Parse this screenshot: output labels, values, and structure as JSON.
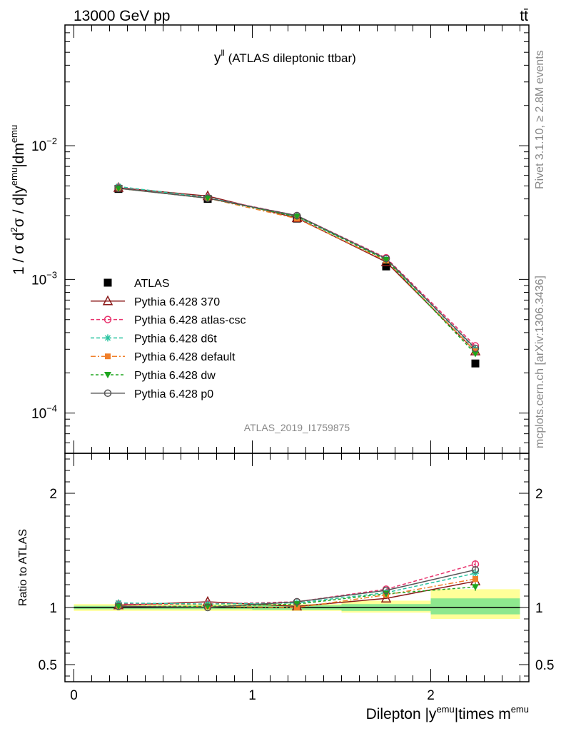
{
  "header": {
    "left": "13000 GeV pp",
    "right": "tt̄"
  },
  "side": {
    "rivet": "Rivet 3.1.10, ≥ 2.8M events",
    "mcplots": "mcplots.cern.ch [arXiv:1306.3436]"
  },
  "plot": {
    "title_main": "y",
    "title_sup": "ll",
    "title_rest": " (ATLAS dileptonic ttbar)",
    "analysis_id": "ATLAS_2019_I1759875"
  },
  "colors": {
    "ATLAS": "#000000",
    "370": "#8b1a1a",
    "atlas-csc": "#e8336d",
    "d6t": "#2ac4a0",
    "default": "#f07f2a",
    "dw": "#1ea51e",
    "p0": "#555555",
    "band_inner": "#8ee88e",
    "band_outer": "#ffff99"
  },
  "chart_data": [
    {
      "type": "line",
      "panel": "main",
      "yscale": "log",
      "ylim": [
        5e-05,
        0.08
      ],
      "xlim": [
        -0.05,
        2.55
      ],
      "ylabel": {
        "lead": "1 / σ  d",
        "sup1": "2",
        "mid": "σ / d|y",
        "sup2": "emu",
        "end": "|dm",
        "sup3": "emu"
      },
      "yticks": [
        {
          "base": "10",
          "exp": "−2",
          "v": 0.01
        },
        {
          "base": "10",
          "exp": "−3",
          "v": 0.001
        },
        {
          "base": "10",
          "exp": "−4",
          "v": 0.0001
        }
      ],
      "x": [
        0.25,
        0.75,
        1.25,
        1.75,
        2.25
      ],
      "x_edges": [
        0,
        0.5,
        1,
        1.5,
        2,
        2.5
      ],
      "series": [
        {
          "name": "ATLAS",
          "key": "ATLAS",
          "marker": "square",
          "dash": "",
          "values": [
            0.00475,
            0.004,
            0.00285,
            0.00125,
            0.000235
          ]
        },
        {
          "name": "Pythia 6.428 370",
          "key": "370",
          "marker": "triangle-open",
          "dash": "",
          "values": [
            0.00485,
            0.0042,
            0.00288,
            0.00135,
            0.00029
          ]
        },
        {
          "name": "Pythia 6.428 atlas-csc",
          "key": "atlas-csc",
          "marker": "circle-open",
          "dash": "5,3",
          "values": [
            0.0049,
            0.0041,
            0.003,
            0.00145,
            0.000318
          ]
        },
        {
          "name": "Pythia 6.428 d6t",
          "key": "d6t",
          "marker": "star",
          "dash": "5,3",
          "values": [
            0.00495,
            0.0041,
            0.00295,
            0.00142,
            0.0003
          ]
        },
        {
          "name": "Pythia 6.428 default",
          "key": "default",
          "marker": "square-small",
          "dash": "7,3,2,3",
          "values": [
            0.0048,
            0.00405,
            0.00285,
            0.00138,
            0.00029
          ]
        },
        {
          "name": "Pythia 6.428 dw",
          "key": "dw",
          "marker": "triangle-down",
          "dash": "4,3",
          "values": [
            0.0048,
            0.00405,
            0.00295,
            0.0014,
            0.000278
          ]
        },
        {
          "name": "Pythia 6.428 p0",
          "key": "p0",
          "marker": "circle-open",
          "dash": "",
          "values": [
            0.0048,
            0.00405,
            0.003,
            0.00143,
            0.000305
          ]
        }
      ]
    },
    {
      "type": "line",
      "panel": "ratio",
      "ylabel": "Ratio to ATLAS",
      "ylim": [
        0.35,
        2.35
      ],
      "yticks": [
        0.5,
        1,
        2
      ],
      "ytick_labels": [
        "0.5",
        "1",
        "2"
      ],
      "xlabel": {
        "lead": "Dilepton |y",
        "sup1": "emu",
        "mid": "|times m",
        "sup2": "emu"
      },
      "xticks": [
        0,
        1,
        2
      ],
      "xtick_labels": [
        "0",
        "1",
        "2"
      ],
      "band": {
        "edges": [
          0,
          0.5,
          1,
          1.5,
          2,
          2.5
        ],
        "inner": [
          [
            0.985,
            1.015
          ],
          [
            0.985,
            1.015
          ],
          [
            0.98,
            1.02
          ],
          [
            0.97,
            1.03
          ],
          [
            0.94,
            1.08
          ]
        ],
        "outer": [
          [
            0.97,
            1.03
          ],
          [
            0.97,
            1.03
          ],
          [
            0.97,
            1.03
          ],
          [
            0.955,
            1.06
          ],
          [
            0.9,
            1.16
          ]
        ]
      },
      "x": [
        0.25,
        0.75,
        1.25,
        1.75,
        2.25
      ],
      "series": [
        {
          "name": "Pythia 6.428 370",
          "key": "370",
          "marker": "triangle-open",
          "dash": "",
          "values": [
            1.02,
            1.05,
            1.01,
            1.08,
            1.23
          ]
        },
        {
          "name": "Pythia 6.428 atlas-csc",
          "key": "atlas-csc",
          "marker": "circle-open",
          "dash": "5,3",
          "values": [
            1.03,
            1.03,
            1.05,
            1.16,
            1.38
          ]
        },
        {
          "name": "Pythia 6.428 d6t",
          "key": "d6t",
          "marker": "star",
          "dash": "5,3",
          "values": [
            1.04,
            1.03,
            1.04,
            1.13,
            1.3
          ]
        },
        {
          "name": "Pythia 6.428 default",
          "key": "default",
          "marker": "square-small",
          "dash": "7,3,2,3",
          "values": [
            1.01,
            1.01,
            1.0,
            1.11,
            1.25
          ]
        },
        {
          "name": "Pythia 6.428 dw",
          "key": "dw",
          "marker": "triangle-down",
          "dash": "4,3",
          "values": [
            1.01,
            1.01,
            1.03,
            1.12,
            1.18
          ]
        },
        {
          "name": "Pythia 6.428 p0",
          "key": "p0",
          "marker": "circle-open",
          "dash": "",
          "values": [
            1.01,
            1.0,
            1.05,
            1.15,
            1.33
          ]
        }
      ]
    }
  ]
}
